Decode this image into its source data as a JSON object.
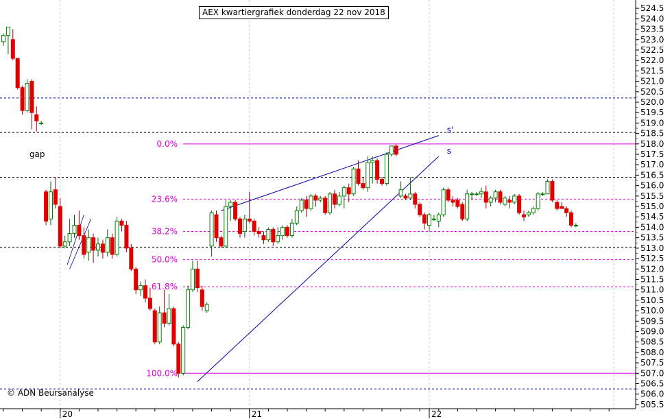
{
  "chart_data": {
    "type": "candlestick",
    "title": "AEX kwartiergrafiek donderdag 22 nov 2018",
    "copyright": "© ADN Beursanalyse",
    "ylim": [
      505.3,
      524.9
    ],
    "y_ticks": [
      505.5,
      506.0,
      506.5,
      507.0,
      507.5,
      508.0,
      508.5,
      509.0,
      509.5,
      510.0,
      510.5,
      511.0,
      511.5,
      512.0,
      512.5,
      513.0,
      513.5,
      514.0,
      514.5,
      515.0,
      515.5,
      516.0,
      516.5,
      517.0,
      517.5,
      518.0,
      518.5,
      519.0,
      519.5,
      520.0,
      520.5,
      521.0,
      521.5,
      522.0,
      522.5,
      523.0,
      523.5,
      524.0,
      524.5
    ],
    "x_labels": [
      {
        "label": "20",
        "index": 12
      },
      {
        "label": "21",
        "index": 52
      },
      {
        "label": "22",
        "index": 90
      }
    ],
    "fib_levels": [
      {
        "label": "0.0%",
        "value": 518.0,
        "style": "solid"
      },
      {
        "label": "23.6%",
        "value": 515.35,
        "style": "dashed"
      },
      {
        "label": "38.2%",
        "value": 513.8,
        "style": "dashed"
      },
      {
        "label": "50.0%",
        "value": 512.45,
        "style": "dashed"
      },
      {
        "label": "61.8%",
        "value": 511.15,
        "style": "dashed"
      },
      {
        "label": "100.0%",
        "value": 507.0,
        "style": "solid"
      }
    ],
    "horizontal_lines": [
      {
        "value": 520.2,
        "color": "#0000aa"
      },
      {
        "value": 518.55,
        "color": "#000000"
      },
      {
        "value": 516.4,
        "color": "#000000"
      },
      {
        "value": 513.05,
        "color": "#000000"
      },
      {
        "value": 506.25,
        "color": "#0000aa"
      }
    ],
    "trendlines": [
      {
        "from": [
          46,
          514.8
        ],
        "to": [
          92,
          518.4
        ],
        "label": "s'"
      },
      {
        "from": [
          41,
          506.6
        ],
        "to": [
          92,
          517.4
        ],
        "label": "s"
      }
    ],
    "annotations": [
      {
        "text": "gap",
        "index": 5.5,
        "value": 517.5
      }
    ],
    "series": [
      {
        "candles": [
          [
            522.9,
            523.2,
            523.3,
            522.7
          ],
          [
            523.2,
            523.6,
            523.6,
            522.3
          ],
          [
            523.0,
            522.1,
            523.5,
            522.0
          ],
          [
            522.1,
            520.7,
            522.1,
            520.6
          ],
          [
            520.7,
            519.6,
            520.8,
            519.4
          ],
          [
            519.6,
            520.9,
            521.1,
            519.5
          ],
          [
            521.0,
            519.5,
            521.1,
            518.7
          ],
          [
            519.4,
            519.1,
            519.8,
            518.6
          ],
          [
            519.0,
            519.0,
            519.1,
            518.9
          ],
          [
            515.7,
            514.3,
            515.8,
            514.1
          ],
          [
            514.4,
            515.7,
            516.2,
            514.1
          ],
          [
            515.8,
            515.1,
            516.4,
            514.9
          ],
          [
            515.0,
            513.1,
            515.4,
            513.0
          ],
          [
            513.1,
            513.3,
            513.6,
            513.0
          ],
          [
            513.3,
            513.7,
            514.4,
            513.1
          ],
          [
            513.7,
            514.1,
            514.6,
            513.5
          ],
          [
            514.1,
            513.6,
            514.8,
            513.4
          ],
          [
            513.6,
            512.7,
            514.0,
            512.5
          ],
          [
            512.8,
            513.5,
            513.9,
            512.4
          ],
          [
            513.5,
            512.9,
            513.7,
            512.3
          ],
          [
            512.9,
            513.2,
            513.5,
            512.6
          ],
          [
            513.2,
            512.8,
            513.4,
            512.5
          ],
          [
            512.8,
            513.5,
            513.9,
            512.6
          ],
          [
            513.5,
            512.7,
            513.7,
            512.5
          ],
          [
            512.7,
            514.3,
            514.5,
            512.6
          ],
          [
            514.3,
            514.1,
            514.4,
            513.8
          ],
          [
            514.1,
            513.0,
            514.3,
            512.8
          ],
          [
            513.0,
            512.0,
            513.2,
            511.9
          ],
          [
            512.0,
            511.0,
            512.1,
            510.8
          ],
          [
            511.0,
            511.2,
            511.4,
            510.7
          ],
          [
            511.2,
            510.6,
            511.5,
            510.4
          ],
          [
            510.6,
            510.1,
            511.1,
            510.0
          ],
          [
            510.0,
            508.5,
            510.1,
            508.4
          ],
          [
            508.5,
            509.9,
            510.2,
            508.4
          ],
          [
            509.9,
            509.4,
            511.0,
            509.2
          ],
          [
            509.4,
            510.1,
            510.8,
            509.3
          ],
          [
            510.1,
            508.4,
            510.2,
            508.3
          ],
          [
            508.4,
            507.0,
            508.5,
            506.8
          ],
          [
            507.0,
            509.2,
            509.3,
            506.9
          ],
          [
            509.2,
            511.0,
            511.2,
            509.1
          ],
          [
            511.0,
            512.0,
            512.4,
            510.9
          ],
          [
            512.0,
            511.1,
            512.4,
            510.9
          ],
          [
            511.0,
            510.2,
            511.2,
            510.0
          ],
          [
            510.0,
            510.3,
            510.4,
            509.9
          ],
          [
            513.1,
            514.7,
            514.8,
            512.6
          ],
          [
            514.6,
            513.5,
            514.8,
            513.3
          ],
          [
            513.5,
            513.1,
            513.6,
            513.0
          ],
          [
            513.1,
            515.0,
            515.3,
            513.0
          ],
          [
            515.0,
            515.2,
            515.3,
            514.3
          ],
          [
            515.2,
            514.4,
            515.3,
            514.3
          ],
          [
            514.4,
            513.7,
            514.5,
            513.5
          ],
          [
            513.8,
            514.4,
            514.6,
            513.5
          ],
          [
            514.4,
            514.3,
            515.7,
            514.2
          ],
          [
            514.3,
            513.8,
            514.4,
            513.6
          ],
          [
            513.8,
            513.7,
            514.0,
            513.5
          ],
          [
            513.6,
            513.4,
            513.8,
            513.2
          ],
          [
            513.4,
            513.9,
            514.0,
            513.3
          ],
          [
            513.9,
            513.3,
            514.0,
            513.1
          ],
          [
            513.3,
            513.6,
            514.0,
            513.2
          ],
          [
            513.6,
            514.0,
            514.1,
            513.4
          ],
          [
            514.0,
            513.6,
            514.1,
            513.5
          ],
          [
            513.6,
            514.2,
            514.4,
            513.5
          ],
          [
            514.2,
            514.8,
            515.0,
            514.1
          ],
          [
            514.8,
            515.3,
            515.4,
            514.7
          ],
          [
            515.3,
            514.9,
            515.5,
            514.5
          ],
          [
            514.9,
            515.5,
            515.6,
            514.8
          ],
          [
            515.5,
            515.3,
            515.6,
            515.0
          ],
          [
            515.3,
            515.4,
            515.5,
            515.2
          ],
          [
            515.4,
            514.7,
            515.5,
            514.6
          ],
          [
            514.7,
            515.6,
            515.7,
            514.6
          ],
          [
            515.6,
            515.1,
            515.8,
            514.9
          ],
          [
            515.1,
            515.5,
            515.7,
            515.0
          ],
          [
            515.5,
            515.9,
            516.0,
            514.9
          ],
          [
            515.9,
            515.6,
            516.1,
            515.2
          ],
          [
            515.6,
            516.8,
            516.9,
            515.5
          ],
          [
            516.8,
            516.1,
            517.2,
            516.0
          ],
          [
            516.1,
            515.9,
            516.4,
            515.8
          ],
          [
            515.9,
            517.1,
            517.4,
            515.7
          ],
          [
            517.1,
            517.2,
            517.4,
            516.1
          ],
          [
            517.2,
            516.3,
            517.3,
            516.1
          ],
          [
            516.3,
            516.1,
            516.4,
            516.0
          ],
          [
            516.1,
            517.5,
            517.6,
            516.0
          ],
          [
            517.5,
            517.9,
            517.9,
            517.4
          ],
          [
            517.9,
            517.5,
            518.0,
            517.4
          ],
          [
            515.5,
            515.8,
            516.2,
            515.4
          ],
          [
            515.5,
            515.4,
            515.6,
            515.3
          ],
          [
            515.4,
            515.6,
            516.4,
            515.3
          ],
          [
            515.6,
            515.1,
            515.7,
            514.9
          ],
          [
            515.1,
            514.6,
            515.2,
            514.5
          ],
          [
            514.6,
            514.2,
            514.7,
            513.9
          ],
          [
            514.1,
            514.6,
            514.7,
            513.8
          ],
          [
            514.4,
            514.4,
            514.6,
            514.3
          ],
          [
            514.3,
            514.6,
            514.7,
            514.0
          ],
          [
            514.6,
            515.8,
            515.9,
            514.5
          ],
          [
            515.8,
            515.3,
            515.9,
            515.2
          ],
          [
            515.3,
            515.2,
            515.5,
            515.0
          ],
          [
            515.3,
            515.0,
            515.4,
            514.9
          ],
          [
            515.1,
            514.4,
            515.2,
            514.3
          ],
          [
            514.4,
            515.6,
            515.8,
            514.3
          ],
          [
            515.6,
            515.6,
            515.7,
            515.3
          ],
          [
            515.6,
            515.6,
            515.7,
            515.5
          ],
          [
            515.6,
            515.7,
            515.9,
            515.4
          ],
          [
            515.7,
            515.2,
            516.0,
            514.9
          ],
          [
            515.2,
            515.4,
            515.5,
            515.0
          ],
          [
            515.4,
            515.7,
            515.8,
            515.2
          ],
          [
            515.7,
            515.2,
            515.8,
            515.1
          ],
          [
            515.1,
            515.4,
            515.5,
            515.0
          ],
          [
            515.3,
            515.2,
            515.5,
            514.9
          ],
          [
            515.2,
            515.5,
            515.6,
            515.1
          ],
          [
            515.5,
            514.7,
            515.6,
            514.6
          ],
          [
            514.6,
            514.5,
            514.8,
            514.3
          ],
          [
            514.6,
            514.7,
            514.8,
            514.5
          ],
          [
            514.7,
            514.9,
            515.0,
            514.6
          ],
          [
            514.9,
            515.6,
            515.7,
            514.8
          ],
          [
            515.6,
            515.6,
            515.7,
            515.5
          ],
          [
            515.6,
            516.2,
            516.3,
            515.6
          ],
          [
            516.2,
            515.3,
            516.3,
            515.2
          ],
          [
            515.2,
            514.9,
            515.3,
            514.8
          ],
          [
            515.0,
            514.9,
            515.2,
            514.9
          ],
          [
            514.9,
            514.7,
            515.0,
            514.5
          ],
          [
            514.7,
            514.1,
            514.8,
            514.0
          ],
          [
            514.1,
            514.1,
            514.2,
            514.0
          ]
        ]
      }
    ]
  }
}
